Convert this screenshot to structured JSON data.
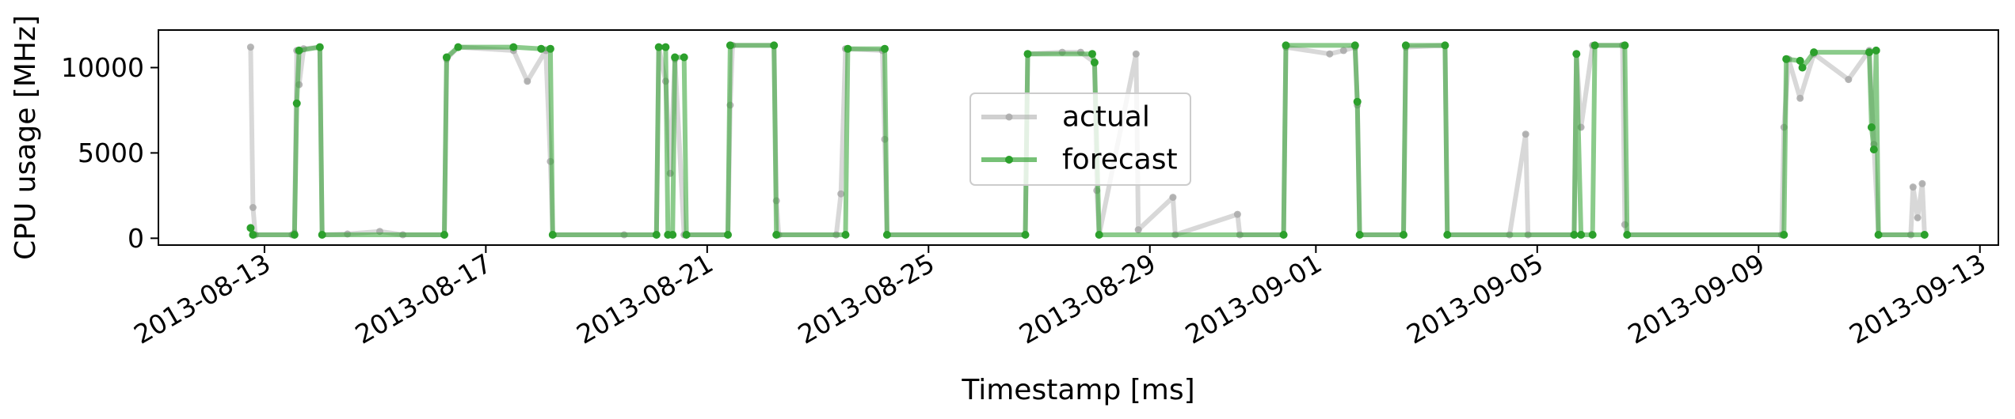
{
  "chart_data": {
    "type": "line",
    "title": "",
    "xlabel": "Timestamp [ms]",
    "ylabel": "CPU usage [MHz]",
    "xlim": [
      "2013-08-11T02:00",
      "2013-09-13T08:00"
    ],
    "ylim": [
      -400,
      12200
    ],
    "xticks": [
      "2013-08-13",
      "2013-08-17",
      "2013-08-21",
      "2013-08-25",
      "2013-08-29",
      "2013-09-01",
      "2013-09-05",
      "2013-09-09",
      "2013-09-13"
    ],
    "xtick_labels": [
      "2013-08-13",
      "2013-08-17",
      "2013-08-21",
      "2013-08-25",
      "2013-08-29",
      "2013-09-01",
      "2013-09-05",
      "2013-09-09",
      "2013-09-13"
    ],
    "yticks": [
      0,
      5000,
      10000
    ],
    "ytick_labels": [
      "0",
      "5000",
      "10000"
    ],
    "grid": false,
    "legend_position": "center",
    "series": [
      {
        "name": "actual",
        "color": "#a9a9a9",
        "points": [
          [
            "2013-08-12T18:00",
            11200
          ],
          [
            "2013-08-12T19:00",
            1800
          ],
          [
            "2013-08-12T20:00",
            200
          ],
          [
            "2013-08-13T12:00",
            200
          ],
          [
            "2013-08-13T13:00",
            300
          ],
          [
            "2013-08-13T14:00",
            11000
          ],
          [
            "2013-08-13T15:00",
            9000
          ],
          [
            "2013-08-13T17:00",
            11100
          ],
          [
            "2013-08-14T00:00",
            11200
          ],
          [
            "2013-08-14T01:00",
            200
          ],
          [
            "2013-08-14T12:00",
            250
          ],
          [
            "2013-08-15T02:00",
            400
          ],
          [
            "2013-08-15T12:00",
            200
          ],
          [
            "2013-08-16T06:00",
            200
          ],
          [
            "2013-08-16T07:00",
            10500
          ],
          [
            "2013-08-16T12:00",
            11200
          ],
          [
            "2013-08-17T12:00",
            11000
          ],
          [
            "2013-08-17T18:00",
            9200
          ],
          [
            "2013-08-18T02:00",
            11000
          ],
          [
            "2013-08-18T04:00",
            4500
          ],
          [
            "2013-08-18T05:00",
            200
          ],
          [
            "2013-08-19T12:00",
            200
          ],
          [
            "2013-08-20T02:00",
            200
          ],
          [
            "2013-08-20T03:00",
            11200
          ],
          [
            "2013-08-20T06:00",
            9200
          ],
          [
            "2013-08-20T08:00",
            3800
          ],
          [
            "2013-08-20T10:00",
            10500
          ],
          [
            "2013-08-20T14:00",
            200
          ],
          [
            "2013-08-21T09:00",
            200
          ],
          [
            "2013-08-21T10:00",
            7800
          ],
          [
            "2013-08-21T11:00",
            11300
          ],
          [
            "2013-08-22T05:00",
            11300
          ],
          [
            "2013-08-22T06:00",
            2200
          ],
          [
            "2013-08-22T07:00",
            200
          ],
          [
            "2013-08-23T08:00",
            200
          ],
          [
            "2013-08-23T10:00",
            2600
          ],
          [
            "2013-08-23T12:00",
            11100
          ],
          [
            "2013-08-24T04:00",
            11000
          ],
          [
            "2013-08-24T05:00",
            5800
          ],
          [
            "2013-08-24T06:00",
            200
          ],
          [
            "2013-08-26T18:00",
            200
          ],
          [
            "2013-08-26T19:00",
            10800
          ],
          [
            "2013-08-27T10:00",
            10900
          ],
          [
            "2013-08-27T18:00",
            10900
          ],
          [
            "2013-08-28T00:00",
            10300
          ],
          [
            "2013-08-28T01:00",
            2800
          ],
          [
            "2013-08-28T02:00",
            200
          ],
          [
            "2013-08-28T18:00",
            10800
          ],
          [
            "2013-08-28T19:00",
            500
          ],
          [
            "2013-08-29T10:00",
            2400
          ],
          [
            "2013-08-29T11:00",
            200
          ],
          [
            "2013-08-30T14:00",
            1400
          ],
          [
            "2013-08-30T15:00",
            200
          ],
          [
            "2013-08-31T10:00",
            200
          ],
          [
            "2013-08-31T11:00",
            11200
          ],
          [
            "2013-09-01T06:00",
            10800
          ],
          [
            "2013-09-01T12:00",
            11000
          ],
          [
            "2013-09-01T17:00",
            11200
          ],
          [
            "2013-09-01T18:00",
            7800
          ],
          [
            "2013-09-01T19:00",
            200
          ],
          [
            "2013-09-02T14:00",
            200
          ],
          [
            "2013-09-02T15:00",
            11200
          ],
          [
            "2013-09-03T08:00",
            11300
          ],
          [
            "2013-09-03T09:00",
            200
          ],
          [
            "2013-09-04T12:00",
            200
          ],
          [
            "2013-09-04T19:00",
            6100
          ],
          [
            "2013-09-04T20:00",
            200
          ],
          [
            "2013-09-05T16:00",
            200
          ],
          [
            "2013-09-05T17:00",
            10800
          ],
          [
            "2013-09-05T19:00",
            6500
          ],
          [
            "2013-09-06T00:00",
            11300
          ],
          [
            "2013-09-06T13:00",
            11300
          ],
          [
            "2013-09-06T14:00",
            800
          ],
          [
            "2013-09-06T15:00",
            200
          ],
          [
            "2013-09-09T10:00",
            200
          ],
          [
            "2013-09-09T11:00",
            6500
          ],
          [
            "2013-09-09T13:00",
            10500
          ],
          [
            "2013-09-09T18:00",
            8200
          ],
          [
            "2013-09-10T00:00",
            10800
          ],
          [
            "2013-09-10T15:00",
            9300
          ],
          [
            "2013-09-11T00:00",
            11000
          ],
          [
            "2013-09-11T02:00",
            5500
          ],
          [
            "2013-09-11T04:00",
            200
          ],
          [
            "2013-09-11T18:00",
            200
          ],
          [
            "2013-09-11T19:00",
            3000
          ],
          [
            "2013-09-11T21:00",
            1200
          ],
          [
            "2013-09-11T23:00",
            3200
          ],
          [
            "2013-09-12T00:00",
            200
          ]
        ]
      },
      {
        "name": "forecast",
        "color": "#2ca02c",
        "points": [
          [
            "2013-08-12T18:00",
            600
          ],
          [
            "2013-08-12T19:00",
            200
          ],
          [
            "2013-08-13T13:00",
            200
          ],
          [
            "2013-08-13T14:00",
            7900
          ],
          [
            "2013-08-13T15:00",
            11000
          ],
          [
            "2013-08-14T00:00",
            11200
          ],
          [
            "2013-08-14T01:00",
            200
          ],
          [
            "2013-08-16T06:00",
            200
          ],
          [
            "2013-08-16T07:00",
            10600
          ],
          [
            "2013-08-16T12:00",
            11200
          ],
          [
            "2013-08-17T12:00",
            11200
          ],
          [
            "2013-08-18T00:00",
            11100
          ],
          [
            "2013-08-18T04:00",
            11100
          ],
          [
            "2013-08-18T05:00",
            200
          ],
          [
            "2013-08-20T02:00",
            200
          ],
          [
            "2013-08-20T03:00",
            11200
          ],
          [
            "2013-08-20T06:00",
            11200
          ],
          [
            "2013-08-20T07:00",
            200
          ],
          [
            "2013-08-20T09:00",
            200
          ],
          [
            "2013-08-20T10:00",
            10600
          ],
          [
            "2013-08-20T14:00",
            10600
          ],
          [
            "2013-08-20T15:00",
            200
          ],
          [
            "2013-08-21T09:00",
            200
          ],
          [
            "2013-08-21T10:00",
            11300
          ],
          [
            "2013-08-22T05:00",
            11300
          ],
          [
            "2013-08-22T06:00",
            200
          ],
          [
            "2013-08-23T12:00",
            200
          ],
          [
            "2013-08-23T13:00",
            11100
          ],
          [
            "2013-08-24T05:00",
            11100
          ],
          [
            "2013-08-24T06:00",
            200
          ],
          [
            "2013-08-26T18:00",
            200
          ],
          [
            "2013-08-26T19:00",
            10800
          ],
          [
            "2013-08-27T23:00",
            10800
          ],
          [
            "2013-08-28T00:00",
            10300
          ],
          [
            "2013-08-28T02:00",
            200
          ],
          [
            "2013-08-31T10:00",
            200
          ],
          [
            "2013-08-31T11:00",
            11300
          ],
          [
            "2013-09-01T17:00",
            11300
          ],
          [
            "2013-09-01T18:00",
            8000
          ],
          [
            "2013-09-01T19:00",
            200
          ],
          [
            "2013-09-02T14:00",
            200
          ],
          [
            "2013-09-02T15:00",
            11300
          ],
          [
            "2013-09-03T08:00",
            11300
          ],
          [
            "2013-09-03T09:00",
            200
          ],
          [
            "2013-09-05T16:00",
            200
          ],
          [
            "2013-09-05T17:00",
            10800
          ],
          [
            "2013-09-05T19:00",
            200
          ],
          [
            "2013-09-06T00:00",
            200
          ],
          [
            "2013-09-06T01:00",
            11300
          ],
          [
            "2013-09-06T14:00",
            11300
          ],
          [
            "2013-09-06T15:00",
            200
          ],
          [
            "2013-09-09T11:00",
            200
          ],
          [
            "2013-09-09T12:00",
            10500
          ],
          [
            "2013-09-09T18:00",
            10400
          ],
          [
            "2013-09-09T19:00",
            10000
          ],
          [
            "2013-09-10T00:00",
            10900
          ],
          [
            "2013-09-11T00:00",
            10900
          ],
          [
            "2013-09-11T01:00",
            6500
          ],
          [
            "2013-09-11T02:00",
            5200
          ],
          [
            "2013-09-11T03:00",
            11000
          ],
          [
            "2013-09-11T04:00",
            200
          ],
          [
            "2013-09-12T00:00",
            200
          ]
        ]
      }
    ]
  }
}
